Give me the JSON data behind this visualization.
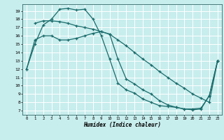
{
  "xlabel": "Humidex (Indice chaleur)",
  "bg_color": "#c8eded",
  "grid_color": "#ffffff",
  "line_color": "#1a6b6b",
  "xlim": [
    -0.5,
    23.5
  ],
  "ylim": [
    6.5,
    19.8
  ],
  "xticks": [
    0,
    1,
    2,
    3,
    4,
    5,
    6,
    7,
    8,
    9,
    10,
    11,
    12,
    13,
    14,
    15,
    16,
    17,
    18,
    19,
    20,
    21,
    22,
    23
  ],
  "yticks": [
    7,
    8,
    9,
    10,
    11,
    12,
    13,
    14,
    15,
    16,
    17,
    18,
    19
  ],
  "line1_x": [
    0,
    1,
    2,
    3,
    4,
    5,
    6,
    7,
    8,
    9,
    10,
    11,
    12,
    13,
    14,
    15,
    16,
    17,
    18,
    19,
    20,
    21,
    22,
    23
  ],
  "line1_y": [
    12,
    15,
    17.3,
    18,
    19.2,
    19.3,
    19.1,
    19.2,
    18,
    16,
    13.2,
    10.3,
    9.5,
    9.1,
    8.4,
    8.0,
    7.6,
    7.5,
    7.4,
    7.2,
    7.2,
    7.3,
    8.8,
    13
  ],
  "line2_x": [
    0,
    1,
    2,
    3,
    4,
    5,
    6,
    7,
    8,
    9,
    10,
    11,
    12,
    13,
    14,
    15,
    16,
    17,
    18,
    19,
    20,
    21,
    22,
    23
  ],
  "line2_y": [
    12,
    15.5,
    16,
    16,
    15.5,
    15.5,
    15.7,
    16,
    16.3,
    16.5,
    16.2,
    13.2,
    10.8,
    10.2,
    9.5,
    9.0,
    8.2,
    7.7,
    7.4,
    7.2,
    7.1,
    7.2,
    8.8,
    13
  ],
  "line3_x": [
    1,
    2,
    3,
    4,
    5,
    6,
    7,
    8,
    9,
    10,
    11,
    12,
    13,
    14,
    15,
    16,
    17,
    18,
    19,
    20,
    21,
    22,
    23
  ],
  "line3_y": [
    17.5,
    17.8,
    17.8,
    17.7,
    17.5,
    17.2,
    17.0,
    16.8,
    16.5,
    16.2,
    15.5,
    14.8,
    14.0,
    13.2,
    12.5,
    11.7,
    11.0,
    10.3,
    9.7,
    9.0,
    8.5,
    8.0,
    13
  ]
}
